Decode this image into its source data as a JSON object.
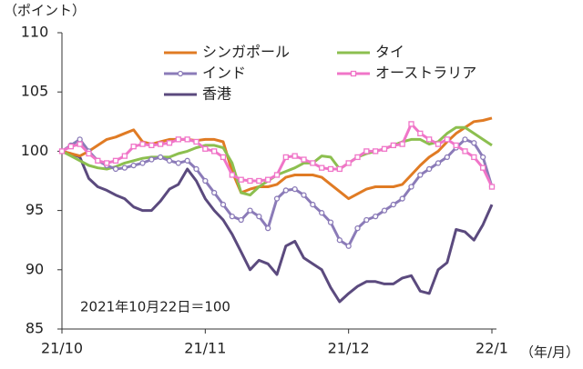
{
  "chart_data": {
    "type": "line",
    "y_label": "（ポイント）",
    "x_label": "（年/月）",
    "annotation": "2021年10月22日＝100",
    "categories": [
      "21/10",
      null,
      null,
      null,
      null,
      null,
      null,
      null,
      null,
      null,
      null,
      null,
      null,
      null,
      null,
      null,
      "21/11",
      null,
      null,
      null,
      null,
      null,
      null,
      null,
      null,
      null,
      null,
      null,
      null,
      null,
      null,
      null,
      "21/12",
      null,
      null,
      null,
      null,
      null,
      null,
      null,
      null,
      null,
      null,
      null,
      null,
      null,
      null,
      null,
      "22/1"
    ],
    "ylim": [
      85,
      110
    ],
    "yticks": [
      85,
      90,
      95,
      100,
      105,
      110
    ],
    "series": [
      {
        "name": "シンガポール",
        "color": "#e07b24",
        "values": [
          100,
          99.8,
          99.6,
          100,
          100.5,
          101,
          101.2,
          101.5,
          101.8,
          100.8,
          100.6,
          100.8,
          101,
          101,
          101,
          100.9,
          101,
          101,
          100.8,
          98.3,
          96.5,
          96.8,
          97,
          97,
          97.2,
          97.8,
          98,
          98,
          98,
          97.8,
          97.2,
          96.6,
          96,
          96.4,
          96.8,
          97,
          97,
          97,
          97.2,
          98,
          98.8,
          99.5,
          100,
          100.8,
          101.5,
          102,
          102.5,
          102.6,
          102.8
        ]
      },
      {
        "name": "タイ",
        "color": "#8cbf4f",
        "values": [
          100,
          99.6,
          99.2,
          98.8,
          98.6,
          98.5,
          98.7,
          99,
          99.2,
          99.4,
          99.5,
          99.5,
          99.5,
          99.8,
          100,
          100.3,
          100.5,
          100.5,
          100.3,
          99,
          96.5,
          96.3,
          97,
          97.5,
          98,
          98.3,
          98.6,
          99,
          99,
          99.6,
          99.5,
          98.5,
          99,
          99.5,
          99.8,
          100,
          100.2,
          100.5,
          100.8,
          101,
          101,
          100.6,
          100.8,
          101.5,
          102,
          102,
          101.5,
          101,
          100.5
        ]
      },
      {
        "name": "インド",
        "color": "#8b7bb8",
        "marker": "circle",
        "values": [
          100,
          100.5,
          101,
          100,
          99.2,
          98.8,
          98.5,
          98.6,
          98.8,
          99,
          99.3,
          99.5,
          99.2,
          99,
          99.2,
          98.5,
          97.5,
          96.5,
          95.5,
          94.5,
          94.2,
          95,
          94.5,
          93.5,
          96,
          96.7,
          96.8,
          96.3,
          95.5,
          94.8,
          94,
          92.5,
          92,
          93.5,
          94.2,
          94.5,
          95,
          95.5,
          96,
          97,
          98,
          98.5,
          99,
          99.5,
          100.3,
          101,
          100.7,
          99.5,
          97
        ]
      },
      {
        "name": "オーストラリア",
        "color": "#f075c8",
        "marker": "square",
        "values": [
          100,
          100.4,
          100.6,
          99.8,
          99.2,
          99,
          99.2,
          99.6,
          100.4,
          100.6,
          100.5,
          100.6,
          100.7,
          101,
          101,
          100.8,
          100.2,
          100,
          99.5,
          98,
          97.6,
          97.5,
          97.5,
          97.6,
          98,
          99.5,
          99.6,
          99.3,
          99,
          98.6,
          98.5,
          98.5,
          99,
          99.5,
          100,
          100,
          100.2,
          100.5,
          100.6,
          102.3,
          101.5,
          101,
          100.6,
          101,
          100.5,
          100,
          99.5,
          98.6,
          97
        ]
      },
      {
        "name": "香港",
        "color": "#5b4a7e",
        "values": [
          100,
          99.8,
          99.5,
          97.7,
          97,
          96.7,
          96.3,
          96,
          95.3,
          95,
          95,
          95.8,
          96.8,
          97.2,
          98.5,
          97.5,
          96,
          95,
          94.2,
          93,
          91.5,
          90,
          90.8,
          90.5,
          89.6,
          92,
          92.4,
          91,
          90.5,
          90,
          88.5,
          87.3,
          88,
          88.6,
          89,
          89,
          88.8,
          88.8,
          89.3,
          89.5,
          88.2,
          88,
          90,
          90.6,
          93.4,
          93.2,
          92.5,
          93.8,
          95.5
        ]
      }
    ]
  }
}
